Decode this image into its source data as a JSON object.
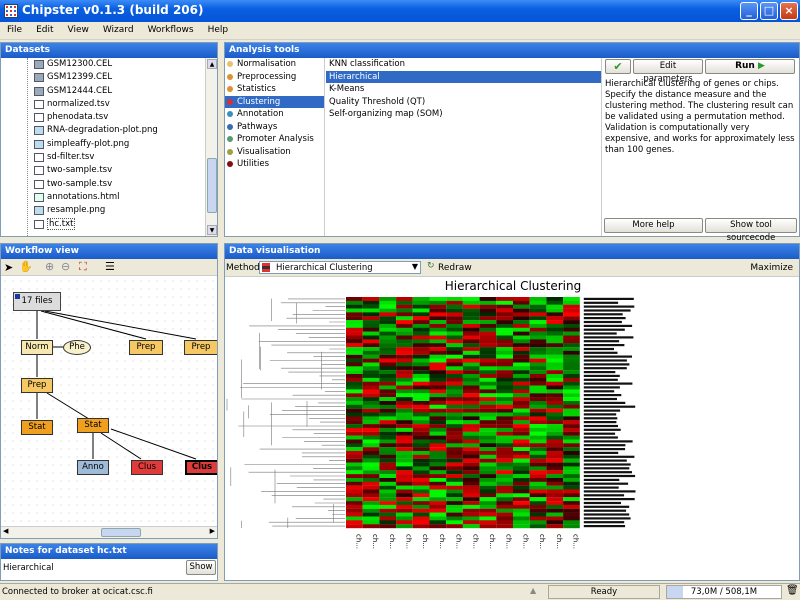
{
  "window": {
    "title": "Chipster v0.1.3 (build 206)"
  },
  "menu": [
    "File",
    "Edit",
    "View",
    "Wizard",
    "Workflows",
    "Help"
  ],
  "datasets": {
    "title": "Datasets",
    "files": [
      {
        "name": "GSM12300.CEL",
        "type": "cel"
      },
      {
        "name": "GSM12399.CEL",
        "type": "cel"
      },
      {
        "name": "GSM12444.CEL",
        "type": "cel"
      },
      {
        "name": "normalized.tsv",
        "type": "table"
      },
      {
        "name": "phenodata.tsv",
        "type": "text"
      },
      {
        "name": "RNA-degradation-plot.png",
        "type": "img"
      },
      {
        "name": "simpleaffy-plot.png",
        "type": "img"
      },
      {
        "name": "sd-filter.tsv",
        "type": "table"
      },
      {
        "name": "two-sample.tsv",
        "type": "table"
      },
      {
        "name": "two-sample.tsv",
        "type": "table"
      },
      {
        "name": "annotations.html",
        "type": "html"
      },
      {
        "name": "resample.png",
        "type": "img"
      },
      {
        "name": "hc.txt",
        "type": "text"
      }
    ]
  },
  "analysis": {
    "title": "Analysis tools",
    "categories": [
      {
        "label": "Normalisation",
        "color": "#e8c070"
      },
      {
        "label": "Preprocessing",
        "color": "#e09030"
      },
      {
        "label": "Statistics",
        "color": "#e09030"
      },
      {
        "label": "Clustering",
        "color": "#d83030"
      },
      {
        "label": "Annotation",
        "color": "#3a8fc0"
      },
      {
        "label": "Pathways",
        "color": "#3a6ab0"
      },
      {
        "label": "Promoter Analysis",
        "color": "#5a9a70"
      },
      {
        "label": "Visualisation",
        "color": "#a0a040"
      },
      {
        "label": "Utilities",
        "color": "#801010"
      }
    ],
    "tools": [
      "KNN classification",
      "Hierarchical",
      "K-Means",
      "Quality Threshold (QT)",
      "Self-organizing map (SOM)"
    ],
    "edit_label": "Edit parameters",
    "run_label": "Run",
    "description": "Hierarchical clustering of genes or chips. Specify the distance measure and the clustering method. The clustering result can be validated using a permutation method. Validation is computationally very expensive, and works for approximately less than 100 genes.",
    "more_help": "More help",
    "show_source": "Show tool sourcecode"
  },
  "workflow": {
    "title": "Workflow view",
    "nodes": {
      "files": "17 files",
      "norm": "Norm",
      "phe": "Phe",
      "prep1": "Prep",
      "prep2": "Prep",
      "prep3": "Prep",
      "stat1": "Stat",
      "stat2": "Stat",
      "anno": "Anno",
      "clus1": "Clus",
      "clus2": "Clus"
    }
  },
  "notes": {
    "title": "Notes for dataset hc.txt",
    "text": "Hierarchical",
    "show_label": "Show"
  },
  "visualisation": {
    "title": "Data visualisation",
    "method_label": "Method:",
    "method_value": "Hierarchical Clustering",
    "redraw_label": "Redraw",
    "maximize_label": "Maximize",
    "chart_title": "Hierarchical Clustering",
    "column_label": "ch..."
  },
  "status": {
    "broker": "Connected to broker at ocicat.csc.fi",
    "state": "Ready",
    "memory": "73,0M / 508,1M"
  },
  "chart_data": {
    "type": "heatmap",
    "title": "Hierarchical Clustering",
    "columns": [
      "ch...",
      "ch...",
      "ch...",
      "ch...",
      "ch...",
      "ch...",
      "ch...",
      "ch...",
      "ch...",
      "ch...",
      "ch...",
      "ch...",
      "ch...",
      "ch..."
    ],
    "colors": {
      "high": "#ff0000",
      "mid": "#000000",
      "low": "#00ff00"
    }
  }
}
